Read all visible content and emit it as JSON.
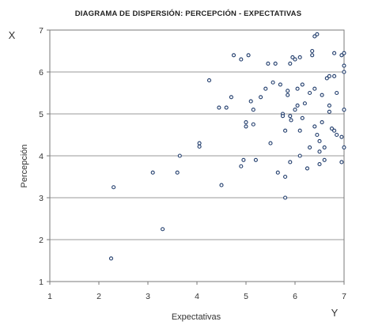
{
  "chart_data": {
    "type": "scatter",
    "title": "DIAGRAMA DE DISPERSIÓN: PERCEPCIÓN - EXPECTATIVAS",
    "xlabel": "Expectativas",
    "ylabel": "Percepción",
    "corner_y_label": "X",
    "corner_x_label": "Y",
    "xlim": [
      1,
      7
    ],
    "ylim": [
      1,
      7
    ],
    "xticks": [
      1,
      2,
      3,
      4,
      5,
      6,
      7
    ],
    "yticks": [
      1,
      2,
      3,
      4,
      5,
      6,
      7
    ],
    "grid": "horizontal",
    "legend": "none",
    "marker_color": "#1f3b6b",
    "points": [
      {
        "x": 2.25,
        "y": 1.55
      },
      {
        "x": 2.3,
        "y": 3.25
      },
      {
        "x": 3.1,
        "y": 3.6
      },
      {
        "x": 3.3,
        "y": 2.25
      },
      {
        "x": 3.6,
        "y": 3.6
      },
      {
        "x": 3.65,
        "y": 4.0
      },
      {
        "x": 4.05,
        "y": 4.3
      },
      {
        "x": 4.05,
        "y": 4.22
      },
      {
        "x": 4.25,
        "y": 5.8
      },
      {
        "x": 4.45,
        "y": 5.15
      },
      {
        "x": 4.5,
        "y": 3.3
      },
      {
        "x": 4.6,
        "y": 5.15
      },
      {
        "x": 4.7,
        "y": 5.4
      },
      {
        "x": 4.75,
        "y": 6.4
      },
      {
        "x": 4.9,
        "y": 6.3
      },
      {
        "x": 4.9,
        "y": 3.75
      },
      {
        "x": 4.95,
        "y": 3.9
      },
      {
        "x": 5.0,
        "y": 4.8
      },
      {
        "x": 5.0,
        "y": 4.7
      },
      {
        "x": 5.05,
        "y": 6.4
      },
      {
        "x": 5.1,
        "y": 5.3
      },
      {
        "x": 5.15,
        "y": 5.1
      },
      {
        "x": 5.15,
        "y": 4.75
      },
      {
        "x": 5.2,
        "y": 3.9
      },
      {
        "x": 5.3,
        "y": 5.4
      },
      {
        "x": 5.4,
        "y": 5.6
      },
      {
        "x": 5.45,
        "y": 6.2
      },
      {
        "x": 5.5,
        "y": 4.3
      },
      {
        "x": 5.55,
        "y": 5.75
      },
      {
        "x": 5.6,
        "y": 6.2
      },
      {
        "x": 5.65,
        "y": 3.6
      },
      {
        "x": 5.7,
        "y": 5.7
      },
      {
        "x": 5.75,
        "y": 5.0
      },
      {
        "x": 5.75,
        "y": 4.95
      },
      {
        "x": 5.8,
        "y": 3.0
      },
      {
        "x": 5.8,
        "y": 4.6
      },
      {
        "x": 5.8,
        "y": 3.5
      },
      {
        "x": 5.85,
        "y": 5.45
      },
      {
        "x": 5.85,
        "y": 5.55
      },
      {
        "x": 5.9,
        "y": 6.2
      },
      {
        "x": 5.9,
        "y": 4.95
      },
      {
        "x": 5.9,
        "y": 3.85
      },
      {
        "x": 5.92,
        "y": 4.85
      },
      {
        "x": 5.95,
        "y": 6.35
      },
      {
        "x": 6.0,
        "y": 6.3
      },
      {
        "x": 6.0,
        "y": 5.1
      },
      {
        "x": 6.05,
        "y": 5.6
      },
      {
        "x": 6.05,
        "y": 5.2
      },
      {
        "x": 6.1,
        "y": 4.6
      },
      {
        "x": 6.1,
        "y": 4.0
      },
      {
        "x": 6.1,
        "y": 6.35
      },
      {
        "x": 6.15,
        "y": 5.7
      },
      {
        "x": 6.15,
        "y": 4.9
      },
      {
        "x": 6.2,
        "y": 5.25
      },
      {
        "x": 6.25,
        "y": 3.7
      },
      {
        "x": 6.3,
        "y": 5.5
      },
      {
        "x": 6.3,
        "y": 4.2
      },
      {
        "x": 6.35,
        "y": 6.4
      },
      {
        "x": 6.35,
        "y": 6.5
      },
      {
        "x": 6.4,
        "y": 5.6
      },
      {
        "x": 6.4,
        "y": 4.7
      },
      {
        "x": 6.4,
        "y": 6.85
      },
      {
        "x": 6.45,
        "y": 6.9
      },
      {
        "x": 6.45,
        "y": 4.5
      },
      {
        "x": 6.5,
        "y": 4.35
      },
      {
        "x": 6.5,
        "y": 4.1
      },
      {
        "x": 6.5,
        "y": 3.8
      },
      {
        "x": 6.55,
        "y": 4.8
      },
      {
        "x": 6.55,
        "y": 5.45
      },
      {
        "x": 6.6,
        "y": 4.2
      },
      {
        "x": 6.6,
        "y": 3.9
      },
      {
        "x": 6.65,
        "y": 5.85
      },
      {
        "x": 6.7,
        "y": 5.9
      },
      {
        "x": 6.7,
        "y": 5.2
      },
      {
        "x": 6.7,
        "y": 5.05
      },
      {
        "x": 6.75,
        "y": 4.65
      },
      {
        "x": 6.8,
        "y": 6.45
      },
      {
        "x": 6.8,
        "y": 4.6
      },
      {
        "x": 6.8,
        "y": 5.9
      },
      {
        "x": 6.85,
        "y": 4.5
      },
      {
        "x": 6.85,
        "y": 5.5
      },
      {
        "x": 6.95,
        "y": 6.4
      },
      {
        "x": 6.95,
        "y": 4.45
      },
      {
        "x": 6.95,
        "y": 3.85
      },
      {
        "x": 7.0,
        "y": 6.45
      },
      {
        "x": 7.0,
        "y": 6.15
      },
      {
        "x": 7.0,
        "y": 6.0
      },
      {
        "x": 7.0,
        "y": 5.1
      },
      {
        "x": 7.0,
        "y": 4.2
      }
    ]
  }
}
